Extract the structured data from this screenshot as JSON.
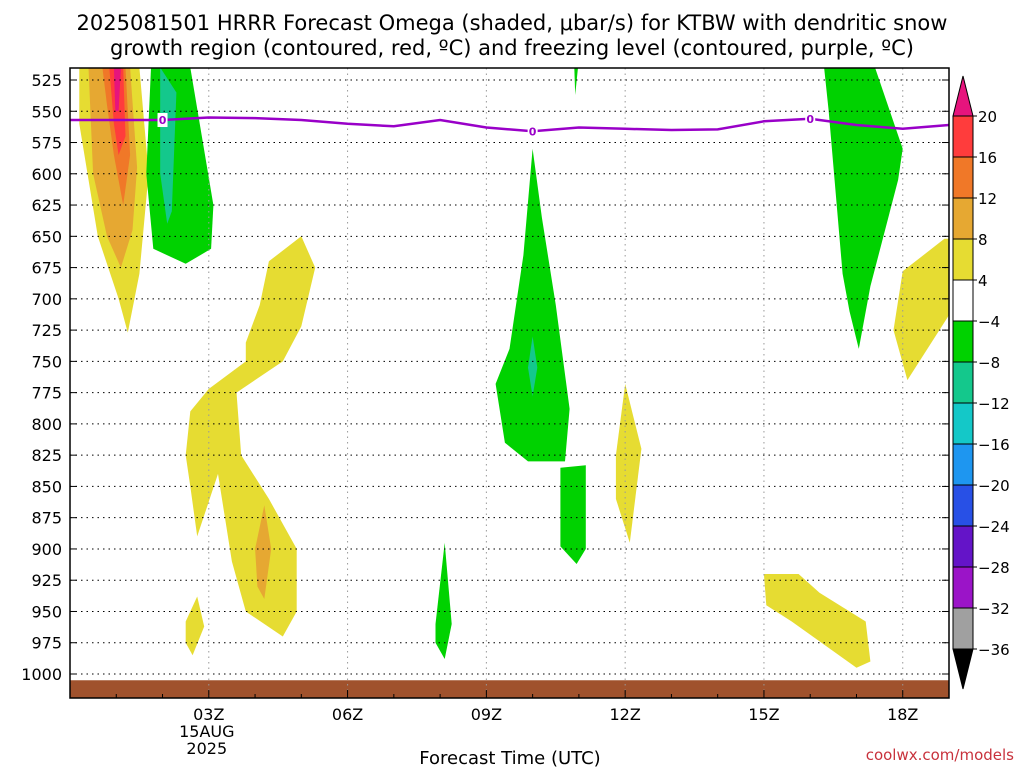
{
  "chart_data": {
    "type": "heatmap",
    "title_line1": "2025081501 HRRR Forecast Omega (shaded, μbar/s) for KTBW with dendritic snow",
    "title_line2": "growth region (contoured, red, ºC) and freezing level (contoured, purple, ºC)",
    "xlabel": "Forecast Time (UTC)",
    "credit": "coolwx.com/models",
    "x_start_hour": 0,
    "x_end_hour": 19,
    "x_ticks": [
      {
        "hour": 3,
        "label": "03Z",
        "sub1": "15AUG",
        "sub2": "2025"
      },
      {
        "hour": 6,
        "label": "06Z"
      },
      {
        "hour": 9,
        "label": "09Z"
      },
      {
        "hour": 12,
        "label": "12Z"
      },
      {
        "hour": 15,
        "label": "15Z"
      },
      {
        "hour": 18,
        "label": "18Z"
      }
    ],
    "y_levels": [
      525,
      550,
      575,
      600,
      625,
      650,
      675,
      700,
      725,
      750,
      775,
      800,
      825,
      850,
      875,
      900,
      925,
      950,
      975,
      1000
    ],
    "ylim": [
      515,
      1012
    ],
    "colorbar": {
      "labels": [
        "20",
        "16",
        "12",
        "8",
        "4",
        "−4",
        "−8",
        "−12",
        "−16",
        "−20",
        "−24",
        "−28",
        "−32",
        "−36"
      ],
      "bins": [
        {
          "color": "#ff3c3c"
        },
        {
          "color": "#f07828"
        },
        {
          "color": "#e6a832"
        },
        {
          "color": "#e6dc32"
        },
        {
          "color": "#ffffff"
        },
        {
          "color": "#00d200"
        },
        {
          "color": "#14c88c"
        },
        {
          "color": "#14c8c8"
        },
        {
          "color": "#1e96f0"
        },
        {
          "color": "#2850e6"
        },
        {
          "color": "#6414c8"
        },
        {
          "color": "#9b14c8"
        },
        {
          "color": "#a0a0a0"
        }
      ],
      "top_arrow_color": "#e6147d",
      "bottom_arrow_color": "#000000"
    },
    "freezing_level": {
      "color": "#9900c8",
      "label": "0",
      "points": [
        [
          0,
          557
        ],
        [
          1,
          557
        ],
        [
          2,
          557
        ],
        [
          3,
          555
        ],
        [
          4,
          555.5
        ],
        [
          5,
          557
        ],
        [
          6,
          560
        ],
        [
          7,
          562
        ],
        [
          8,
          557
        ],
        [
          9,
          563
        ],
        [
          10,
          566
        ],
        [
          11,
          563
        ],
        [
          12,
          564
        ],
        [
          13,
          565
        ],
        [
          14,
          564.5
        ],
        [
          15,
          558
        ],
        [
          16,
          556
        ],
        [
          17,
          561
        ],
        [
          18,
          564
        ],
        [
          19,
          561
        ]
      ],
      "label_hours": [
        2,
        10,
        16
      ]
    },
    "ground": {
      "color": "#a0522d",
      "top_level": 1005
    },
    "omega_regions": [
      {
        "color": "#e6dc32",
        "points": [
          [
            0.2,
            515
          ],
          [
            1.5,
            515
          ],
          [
            1.7,
            600
          ],
          [
            1.5,
            680
          ],
          [
            1.25,
            727
          ],
          [
            1.05,
            700
          ],
          [
            0.6,
            650
          ],
          [
            0.2,
            560
          ]
        ]
      },
      {
        "color": "#e6a832",
        "points": [
          [
            0.4,
            515
          ],
          [
            1.3,
            515
          ],
          [
            1.45,
            595
          ],
          [
            1.35,
            645
          ],
          [
            1.1,
            675
          ],
          [
            0.8,
            650
          ],
          [
            0.5,
            600
          ]
        ]
      },
      {
        "color": "#f07828",
        "points": [
          [
            0.7,
            515
          ],
          [
            1.2,
            515
          ],
          [
            1.3,
            585
          ],
          [
            1.15,
            625
          ],
          [
            0.95,
            585
          ],
          [
            0.8,
            545
          ]
        ]
      },
      {
        "color": "#ff3c3c",
        "points": [
          [
            0.85,
            515
          ],
          [
            1.15,
            515
          ],
          [
            1.2,
            570
          ],
          [
            1.05,
            585
          ],
          [
            0.95,
            560
          ]
        ]
      },
      {
        "color": "#e6147d",
        "points": [
          [
            0.95,
            515
          ],
          [
            1.1,
            515
          ],
          [
            1.05,
            550
          ],
          [
            0.98,
            550
          ]
        ]
      },
      {
        "color": "#00d200",
        "points": [
          [
            1.75,
            515
          ],
          [
            2.6,
            515
          ],
          [
            3.1,
            625
          ],
          [
            3.05,
            660
          ],
          [
            2.5,
            672
          ],
          [
            1.8,
            660
          ],
          [
            1.65,
            600
          ]
        ]
      },
      {
        "color": "#14c88c",
        "points": [
          [
            1.95,
            515
          ],
          [
            2.3,
            535
          ],
          [
            2.2,
            630
          ],
          [
            2.1,
            640
          ],
          [
            1.95,
            600
          ]
        ]
      },
      {
        "color": "#e6dc32",
        "points": [
          [
            2.5,
            825
          ],
          [
            2.6,
            790
          ],
          [
            3.0,
            772
          ],
          [
            3.8,
            750
          ],
          [
            3.8,
            735
          ],
          [
            4.1,
            705
          ],
          [
            4.3,
            670
          ],
          [
            5.0,
            650
          ],
          [
            5.3,
            675
          ],
          [
            5.0,
            722
          ],
          [
            4.6,
            750
          ],
          [
            3.6,
            775
          ],
          [
            3.7,
            825
          ],
          [
            4.3,
            860
          ],
          [
            4.9,
            900
          ],
          [
            4.9,
            950
          ],
          [
            4.6,
            970
          ],
          [
            3.8,
            950
          ],
          [
            3.5,
            910
          ],
          [
            3.2,
            840
          ],
          [
            2.75,
            890
          ],
          [
            2.6,
            850
          ]
        ]
      },
      {
        "color": "#e6a832",
        "points": [
          [
            4.0,
            900
          ],
          [
            4.2,
            865
          ],
          [
            4.35,
            900
          ],
          [
            4.2,
            940
          ],
          [
            4.05,
            930
          ]
        ]
      },
      {
        "color": "#e6dc32",
        "points": [
          [
            2.5,
            958
          ],
          [
            2.75,
            938
          ],
          [
            2.9,
            962
          ],
          [
            2.65,
            985
          ],
          [
            2.5,
            975
          ]
        ]
      },
      {
        "color": "#00d200",
        "points": [
          [
            7.9,
            960
          ],
          [
            8.1,
            895
          ],
          [
            8.25,
            960
          ],
          [
            8.1,
            988
          ],
          [
            7.9,
            975
          ]
        ]
      },
      {
        "color": "#00d200",
        "points": [
          [
            9.2,
            768
          ],
          [
            9.5,
            740
          ],
          [
            9.8,
            665
          ],
          [
            10.0,
            580
          ],
          [
            10.2,
            635
          ],
          [
            10.5,
            705
          ],
          [
            10.8,
            788
          ],
          [
            10.7,
            830
          ],
          [
            9.9,
            830
          ],
          [
            9.4,
            815
          ]
        ]
      },
      {
        "color": "#14c88c",
        "points": [
          [
            9.9,
            755
          ],
          [
            10.0,
            730
          ],
          [
            10.1,
            755
          ],
          [
            10.0,
            778
          ]
        ]
      },
      {
        "color": "#00d200",
        "points": [
          [
            10.6,
            835
          ],
          [
            11.15,
            833
          ],
          [
            11.15,
            900
          ],
          [
            10.95,
            912
          ],
          [
            10.6,
            898
          ]
        ]
      },
      {
        "color": "#00d200",
        "points": [
          [
            10.9,
            515
          ],
          [
            10.98,
            515
          ],
          [
            10.92,
            537
          ]
        ]
      },
      {
        "color": "#e6dc32",
        "points": [
          [
            11.8,
            825
          ],
          [
            12.0,
            768
          ],
          [
            12.35,
            820
          ],
          [
            12.1,
            895
          ],
          [
            11.8,
            860
          ]
        ]
      },
      {
        "color": "#00d200",
        "points": [
          [
            16.3,
            515
          ],
          [
            17.4,
            515
          ],
          [
            18.0,
            580
          ],
          [
            17.9,
            605
          ],
          [
            17.3,
            690
          ],
          [
            17.05,
            740
          ],
          [
            16.85,
            710
          ],
          [
            16.7,
            680
          ],
          [
            16.4,
            550
          ]
        ]
      },
      {
        "color": "#e6dc32",
        "points": [
          [
            18.0,
            678
          ],
          [
            18.9,
            652
          ],
          [
            19.0,
            652
          ],
          [
            19.0,
            713
          ],
          [
            18.1,
            765
          ],
          [
            17.8,
            725
          ]
        ]
      },
      {
        "color": "#e6dc32",
        "points": [
          [
            15.0,
            920
          ],
          [
            15.75,
            920
          ],
          [
            16.2,
            935
          ],
          [
            17.2,
            958
          ],
          [
            17.3,
            990
          ],
          [
            17.0,
            995
          ],
          [
            15.6,
            958
          ],
          [
            15.05,
            945
          ]
        ]
      }
    ]
  }
}
